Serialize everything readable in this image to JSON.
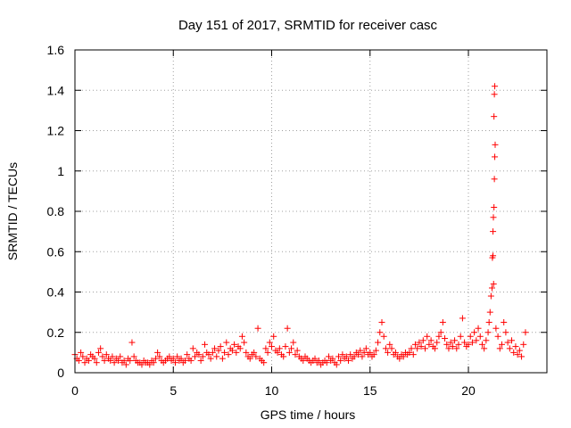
{
  "chart_data": {
    "type": "scatter",
    "title": "Day 151 of 2017, SRMTID for receiver casc",
    "xlabel": "GPS time / hours",
    "ylabel": "SRMTID / TECUs",
    "xlim": [
      0,
      23.99
    ],
    "ylim": [
      0,
      1.6
    ],
    "xticks": [
      0,
      5,
      10,
      15,
      20
    ],
    "xtick_labels": [
      "0",
      "5",
      "10",
      "15",
      "20"
    ],
    "yticks": [
      0,
      0.2,
      0.4,
      0.6,
      0.8,
      1.0,
      1.2,
      1.4,
      1.6
    ],
    "ytick_labels": [
      "0",
      "0.2",
      "0.4",
      "0.6",
      "0.8",
      "1",
      "1.2",
      "1.4",
      "1.6"
    ],
    "grid": true,
    "marker": "+",
    "series_color": "#ff0000",
    "series": [
      {
        "name": "SRMTID",
        "description": "dense time series, ~0.04-0.25 TECU baseline with spike near 21.2 h",
        "points": [
          [
            0.0,
            0.09
          ],
          [
            0.1,
            0.07
          ],
          [
            0.2,
            0.06
          ],
          [
            0.3,
            0.1
          ],
          [
            0.4,
            0.08
          ],
          [
            0.5,
            0.05
          ],
          [
            0.6,
            0.07
          ],
          [
            0.7,
            0.06
          ],
          [
            0.8,
            0.09
          ],
          [
            0.9,
            0.08
          ],
          [
            1.0,
            0.07
          ],
          [
            1.1,
            0.05
          ],
          [
            1.2,
            0.1
          ],
          [
            1.3,
            0.12
          ],
          [
            1.4,
            0.08
          ],
          [
            1.5,
            0.06
          ],
          [
            1.6,
            0.09
          ],
          [
            1.7,
            0.07
          ],
          [
            1.8,
            0.06
          ],
          [
            1.9,
            0.08
          ],
          [
            2.0,
            0.05
          ],
          [
            2.1,
            0.07
          ],
          [
            2.2,
            0.06
          ],
          [
            2.3,
            0.08
          ],
          [
            2.4,
            0.05
          ],
          [
            2.5,
            0.06
          ],
          [
            2.6,
            0.04
          ],
          [
            2.7,
            0.07
          ],
          [
            2.8,
            0.06
          ],
          [
            2.9,
            0.15
          ],
          [
            3.0,
            0.08
          ],
          [
            3.1,
            0.06
          ],
          [
            3.2,
            0.05
          ],
          [
            3.3,
            0.05
          ],
          [
            3.4,
            0.04
          ],
          [
            3.5,
            0.06
          ],
          [
            3.6,
            0.05
          ],
          [
            3.7,
            0.05
          ],
          [
            3.8,
            0.04
          ],
          [
            3.9,
            0.06
          ],
          [
            4.0,
            0.05
          ],
          [
            4.1,
            0.07
          ],
          [
            4.2,
            0.1
          ],
          [
            4.3,
            0.08
          ],
          [
            4.4,
            0.06
          ],
          [
            4.5,
            0.05
          ],
          [
            4.6,
            0.06
          ],
          [
            4.7,
            0.07
          ],
          [
            4.8,
            0.08
          ],
          [
            4.9,
            0.06
          ],
          [
            5.0,
            0.07
          ],
          [
            5.1,
            0.05
          ],
          [
            5.2,
            0.08
          ],
          [
            5.3,
            0.06
          ],
          [
            5.4,
            0.07
          ],
          [
            5.5,
            0.05
          ],
          [
            5.6,
            0.06
          ],
          [
            5.7,
            0.09
          ],
          [
            5.8,
            0.07
          ],
          [
            5.9,
            0.06
          ],
          [
            6.0,
            0.12
          ],
          [
            6.1,
            0.08
          ],
          [
            6.2,
            0.1
          ],
          [
            6.3,
            0.09
          ],
          [
            6.4,
            0.06
          ],
          [
            6.5,
            0.08
          ],
          [
            6.6,
            0.14
          ],
          [
            6.7,
            0.1
          ],
          [
            6.8,
            0.09
          ],
          [
            6.9,
            0.07
          ],
          [
            7.0,
            0.1
          ],
          [
            7.1,
            0.12
          ],
          [
            7.2,
            0.08
          ],
          [
            7.3,
            0.11
          ],
          [
            7.4,
            0.13
          ],
          [
            7.5,
            0.07
          ],
          [
            7.6,
            0.1
          ],
          [
            7.7,
            0.15
          ],
          [
            7.8,
            0.09
          ],
          [
            7.9,
            0.12
          ],
          [
            8.0,
            0.11
          ],
          [
            8.1,
            0.14
          ],
          [
            8.2,
            0.1
          ],
          [
            8.3,
            0.13
          ],
          [
            8.4,
            0.12
          ],
          [
            8.5,
            0.18
          ],
          [
            8.6,
            0.15
          ],
          [
            8.7,
            0.1
          ],
          [
            8.8,
            0.08
          ],
          [
            8.9,
            0.07
          ],
          [
            9.0,
            0.09
          ],
          [
            9.1,
            0.1
          ],
          [
            9.2,
            0.08
          ],
          [
            9.3,
            0.22
          ],
          [
            9.4,
            0.07
          ],
          [
            9.5,
            0.06
          ],
          [
            9.6,
            0.05
          ],
          [
            9.7,
            0.12
          ],
          [
            9.8,
            0.1
          ],
          [
            9.9,
            0.15
          ],
          [
            10.0,
            0.13
          ],
          [
            10.1,
            0.18
          ],
          [
            10.2,
            0.11
          ],
          [
            10.3,
            0.1
          ],
          [
            10.4,
            0.12
          ],
          [
            10.5,
            0.09
          ],
          [
            10.6,
            0.08
          ],
          [
            10.7,
            0.13
          ],
          [
            10.8,
            0.22
          ],
          [
            10.9,
            0.1
          ],
          [
            11.0,
            0.12
          ],
          [
            11.1,
            0.15
          ],
          [
            11.2,
            0.09
          ],
          [
            11.3,
            0.11
          ],
          [
            11.4,
            0.08
          ],
          [
            11.5,
            0.07
          ],
          [
            11.6,
            0.06
          ],
          [
            11.7,
            0.08
          ],
          [
            11.8,
            0.07
          ],
          [
            11.9,
            0.06
          ],
          [
            12.0,
            0.05
          ],
          [
            12.1,
            0.06
          ],
          [
            12.2,
            0.07
          ],
          [
            12.3,
            0.05
          ],
          [
            12.4,
            0.06
          ],
          [
            12.5,
            0.04
          ],
          [
            12.6,
            0.05
          ],
          [
            12.7,
            0.06
          ],
          [
            12.8,
            0.05
          ],
          [
            12.9,
            0.08
          ],
          [
            13.0,
            0.06
          ],
          [
            13.1,
            0.07
          ],
          [
            13.2,
            0.05
          ],
          [
            13.3,
            0.04
          ],
          [
            13.4,
            0.08
          ],
          [
            13.5,
            0.06
          ],
          [
            13.6,
            0.09
          ],
          [
            13.7,
            0.07
          ],
          [
            13.8,
            0.08
          ],
          [
            13.9,
            0.06
          ],
          [
            14.0,
            0.09
          ],
          [
            14.1,
            0.07
          ],
          [
            14.2,
            0.08
          ],
          [
            14.3,
            0.1
          ],
          [
            14.4,
            0.09
          ],
          [
            14.5,
            0.11
          ],
          [
            14.6,
            0.08
          ],
          [
            14.7,
            0.1
          ],
          [
            14.8,
            0.12
          ],
          [
            14.9,
            0.09
          ],
          [
            15.0,
            0.1
          ],
          [
            15.1,
            0.08
          ],
          [
            15.2,
            0.09
          ],
          [
            15.3,
            0.11
          ],
          [
            15.4,
            0.15
          ],
          [
            15.5,
            0.2
          ],
          [
            15.6,
            0.25
          ],
          [
            15.7,
            0.18
          ],
          [
            15.8,
            0.12
          ],
          [
            15.9,
            0.1
          ],
          [
            16.0,
            0.14
          ],
          [
            16.1,
            0.12
          ],
          [
            16.2,
            0.09
          ],
          [
            16.3,
            0.1
          ],
          [
            16.4,
            0.08
          ],
          [
            16.5,
            0.07
          ],
          [
            16.6,
            0.09
          ],
          [
            16.7,
            0.08
          ],
          [
            16.8,
            0.1
          ],
          [
            16.9,
            0.09
          ],
          [
            17.0,
            0.1
          ],
          [
            17.1,
            0.12
          ],
          [
            17.2,
            0.09
          ],
          [
            17.3,
            0.14
          ],
          [
            17.4,
            0.12
          ],
          [
            17.5,
            0.15
          ],
          [
            17.6,
            0.13
          ],
          [
            17.7,
            0.16
          ],
          [
            17.8,
            0.12
          ],
          [
            17.9,
            0.18
          ],
          [
            18.0,
            0.14
          ],
          [
            18.1,
            0.16
          ],
          [
            18.2,
            0.13
          ],
          [
            18.3,
            0.12
          ],
          [
            18.4,
            0.15
          ],
          [
            18.5,
            0.18
          ],
          [
            18.6,
            0.2
          ],
          [
            18.7,
            0.25
          ],
          [
            18.8,
            0.17
          ],
          [
            18.9,
            0.14
          ],
          [
            19.0,
            0.12
          ],
          [
            19.1,
            0.15
          ],
          [
            19.2,
            0.13
          ],
          [
            19.3,
            0.16
          ],
          [
            19.4,
            0.12
          ],
          [
            19.5,
            0.14
          ],
          [
            19.6,
            0.18
          ],
          [
            19.7,
            0.27
          ],
          [
            19.8,
            0.15
          ],
          [
            19.9,
            0.13
          ],
          [
            20.0,
            0.14
          ],
          [
            20.1,
            0.18
          ],
          [
            20.2,
            0.15
          ],
          [
            20.3,
            0.2
          ],
          [
            20.4,
            0.16
          ],
          [
            20.5,
            0.22
          ],
          [
            20.6,
            0.18
          ],
          [
            20.7,
            0.14
          ],
          [
            20.8,
            0.12
          ],
          [
            20.9,
            0.16
          ],
          [
            21.0,
            0.2
          ],
          [
            21.05,
            0.25
          ],
          [
            21.1,
            0.3
          ],
          [
            21.15,
            0.38
          ],
          [
            21.2,
            0.42
          ],
          [
            21.22,
            0.57
          ],
          [
            21.25,
            0.7
          ],
          [
            21.27,
            0.77
          ],
          [
            21.3,
            0.82
          ],
          [
            21.32,
            0.96
          ],
          [
            21.34,
            1.07
          ],
          [
            21.36,
            1.13
          ],
          [
            21.3,
            1.27
          ],
          [
            21.32,
            1.38
          ],
          [
            21.34,
            1.42
          ],
          [
            21.25,
            0.58
          ],
          [
            21.28,
            0.44
          ],
          [
            21.4,
            0.22
          ],
          [
            21.5,
            0.18
          ],
          [
            21.6,
            0.12
          ],
          [
            21.7,
            0.14
          ],
          [
            21.8,
            0.25
          ],
          [
            21.9,
            0.2
          ],
          [
            22.0,
            0.15
          ],
          [
            22.1,
            0.12
          ],
          [
            22.2,
            0.16
          ],
          [
            22.3,
            0.1
          ],
          [
            22.4,
            0.13
          ],
          [
            22.5,
            0.09
          ],
          [
            22.6,
            0.11
          ],
          [
            22.7,
            0.08
          ],
          [
            22.8,
            0.14
          ],
          [
            22.9,
            0.2
          ]
        ]
      }
    ]
  }
}
